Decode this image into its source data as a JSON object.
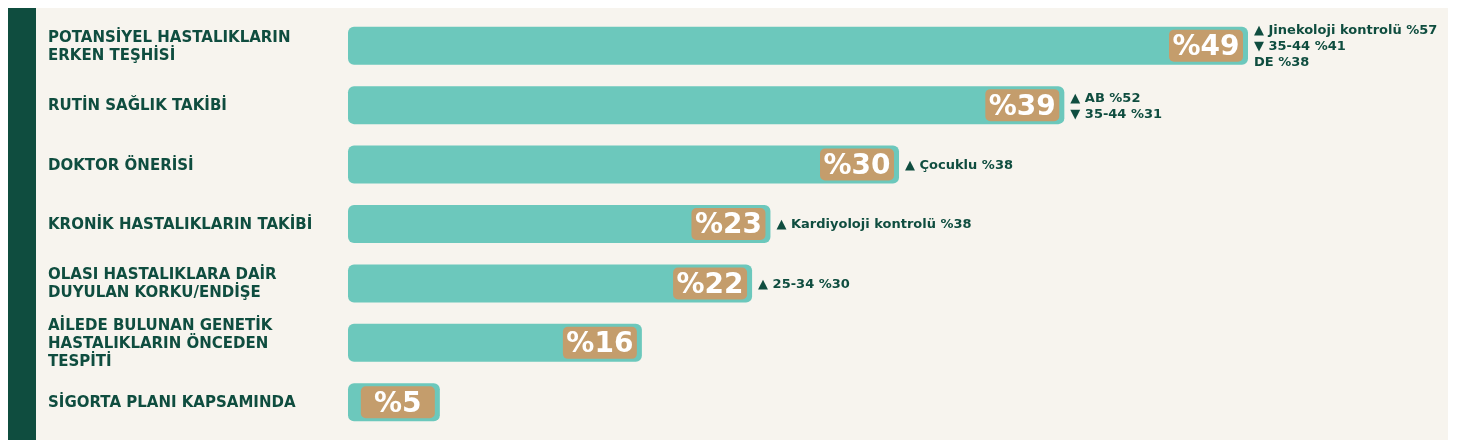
{
  "chart_data": {
    "type": "bar",
    "orientation": "horizontal",
    "categories": [
      "POTANSİYEL HASTALIKLARIN ERKEN TEŞHİSİ",
      "RUTİN SAĞLIK TAKİBİ",
      "DOKTOR ÖNERİSİ",
      "KRONİK HASTALIKLARIN TAKİBİ",
      "OLASI HASTALIKLARA DAİR DUYULAN KORKU/ENDİŞE",
      "AİLEDE BULUNAN GENETİK HASTALIKLARIN ÖNCEDEN TESPİTİ",
      "SİGORTA PLANI KAPSAMINDA"
    ],
    "values": [
      49,
      39,
      30,
      23,
      22,
      16,
      5
    ],
    "value_labels": [
      "%49",
      "%39",
      "%30",
      "%23",
      "%22",
      "%16",
      "%5"
    ],
    "color": "#6cc8bc",
    "annotations": [
      {
        "text": "▲ Jinekoloji kontrolü %57",
        "x": 49,
        "y": "POTANSİYEL HASTALIKLARIN ERKEN TEŞHİSİ"
      },
      {
        "text": "▼ 35-44 %41",
        "x": 49,
        "y": "POTANSİYEL HASTALIKLARIN ERKEN TEŞHİSİ"
      },
      {
        "text": "DE %38",
        "x": 49,
        "y": "POTANSİYEL HASTALIKLARIN ERKEN TEŞHİSİ"
      },
      {
        "text": "▲ AB %52",
        "x": 39,
        "y": "RUTİN SAĞLIK TAKİBİ"
      },
      {
        "text": "▼ 35-44 %31",
        "x": 39,
        "y": "RUTİN SAĞLIK TAKİBİ"
      },
      {
        "text": "▲ Çocuklu %38",
        "x": 30,
        "y": "DOKTOR ÖNERİSİ"
      },
      {
        "text": "▲ Kardiyoloji kontrolü %38",
        "x": 23,
        "y": "KRONİK HASTALIKLARIN TAKİBİ"
      },
      {
        "text": "▲ 25-34 %30",
        "x": 22,
        "y": "OLASI HASTALIKLARA DAİR DUYULAN KORKU/ENDİŞE"
      }
    ]
  }
}
